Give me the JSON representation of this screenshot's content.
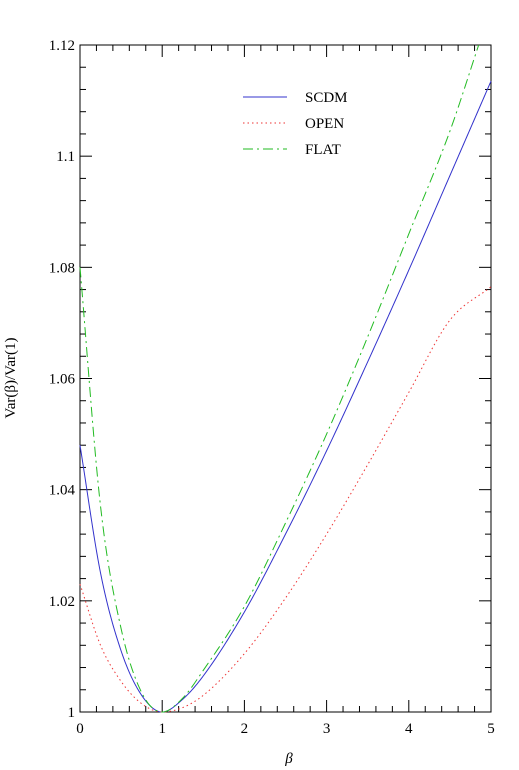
{
  "chart_data": {
    "type": "line",
    "title": "",
    "xlabel": "β",
    "ylabel": "Var(β)/Var(1)",
    "xlim": [
      0,
      5
    ],
    "ylim": [
      1.0,
      1.12
    ],
    "x_ticks": [
      0,
      1,
      2,
      3,
      4,
      5
    ],
    "x_tick_labels": [
      "0",
      "1",
      "2",
      "3",
      "4",
      "5"
    ],
    "y_ticks": [
      1.0,
      1.02,
      1.04,
      1.06,
      1.08,
      1.1,
      1.12
    ],
    "y_tick_labels": [
      "1",
      "1.02",
      "1.04",
      "1.06",
      "1.08",
      "1.1",
      "1.12"
    ],
    "grid": false,
    "legend_position": "top-center",
    "series": [
      {
        "name": "SCDM",
        "color": "#3333cc",
        "dash": "solid",
        "x": [
          0,
          0.25,
          0.5,
          0.75,
          1,
          1.25,
          1.5,
          2,
          2.5,
          3,
          3.5,
          4,
          4.5,
          5
        ],
        "y": [
          1.048,
          1.025,
          1.011,
          1.003,
          1.0,
          1.0023,
          1.0065,
          1.018,
          1.032,
          1.047,
          1.063,
          1.0795,
          1.0965,
          1.1135
        ]
      },
      {
        "name": "OPEN",
        "color": "#ee3333",
        "dash": "dotted",
        "x": [
          0,
          0.25,
          0.5,
          0.75,
          1,
          1.25,
          1.5,
          2,
          2.5,
          3,
          3.5,
          4,
          4.5,
          5
        ],
        "y": [
          1.023,
          1.012,
          1.0055,
          1.0015,
          1.0,
          1.0008,
          1.003,
          1.0105,
          1.0205,
          1.032,
          1.0445,
          1.0575,
          1.0705,
          1.0765
        ]
      },
      {
        "name": "FLAT",
        "color": "#22bb22",
        "dash": "dashdot",
        "x": [
          0,
          0.25,
          0.5,
          0.75,
          1,
          1.25,
          1.5,
          2,
          2.5,
          3,
          3.5,
          4,
          4.5,
          4.85
        ],
        "y": [
          1.08,
          1.037,
          1.015,
          1.0035,
          1.0,
          1.0025,
          1.0075,
          1.019,
          1.034,
          1.05,
          1.0675,
          1.086,
          1.1045,
          1.12
        ]
      }
    ]
  }
}
